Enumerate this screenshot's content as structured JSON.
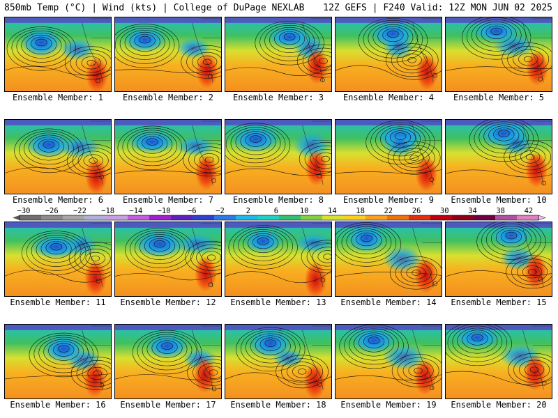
{
  "header": {
    "left": "850mb Temp (°C) | Wind (kts) | College of DuPage NEXLAB",
    "right": "12Z GEFS | F240 Valid: 12Z MON JUN 02 2025"
  },
  "colorbar": {
    "labels": [
      "−30",
      "−26",
      "−22",
      "−18",
      "−14",
      "−10",
      "−6",
      "−2",
      "2",
      "6",
      "10",
      "14",
      "18",
      "22",
      "26",
      "30",
      "34",
      "38",
      "42"
    ],
    "colors": [
      "#6f6f6f",
      "#8c8c8c",
      "#a7a7a7",
      "#b0b0d8",
      "#c8a0e0",
      "#c060e0",
      "#a020d0",
      "#6020c0",
      "#3040d0",
      "#2a7ae8",
      "#1fb8e8",
      "#20d0c0",
      "#30c070",
      "#80d040",
      "#d8e030",
      "#f8d020",
      "#f8a020",
      "#f07010",
      "#e03010",
      "#c00010",
      "#900018",
      "#700040",
      "#b050a0",
      "#e080c0"
    ]
  },
  "panels": [
    {
      "label": "Ensemble Member: 1"
    },
    {
      "label": "Ensemble Member: 2"
    },
    {
      "label": "Ensemble Member: 3"
    },
    {
      "label": "Ensemble Member: 4"
    },
    {
      "label": "Ensemble Member: 5"
    },
    {
      "label": "Ensemble Member: 6"
    },
    {
      "label": "Ensemble Member: 7"
    },
    {
      "label": "Ensemble Member: 8"
    },
    {
      "label": "Ensemble Member: 9"
    },
    {
      "label": "Ensemble Member: 10"
    },
    {
      "label": "Ensemble Member: 11"
    },
    {
      "label": "Ensemble Member: 12"
    },
    {
      "label": "Ensemble Member: 13"
    },
    {
      "label": "Ensemble Member: 14"
    },
    {
      "label": "Ensemble Member: 15"
    },
    {
      "label": "Ensemble Member: 16"
    },
    {
      "label": "Ensemble Member: 17"
    },
    {
      "label": "Ensemble Member: 18"
    },
    {
      "label": "Ensemble Member: 19"
    },
    {
      "label": "Ensemble Member: 20"
    }
  ]
}
